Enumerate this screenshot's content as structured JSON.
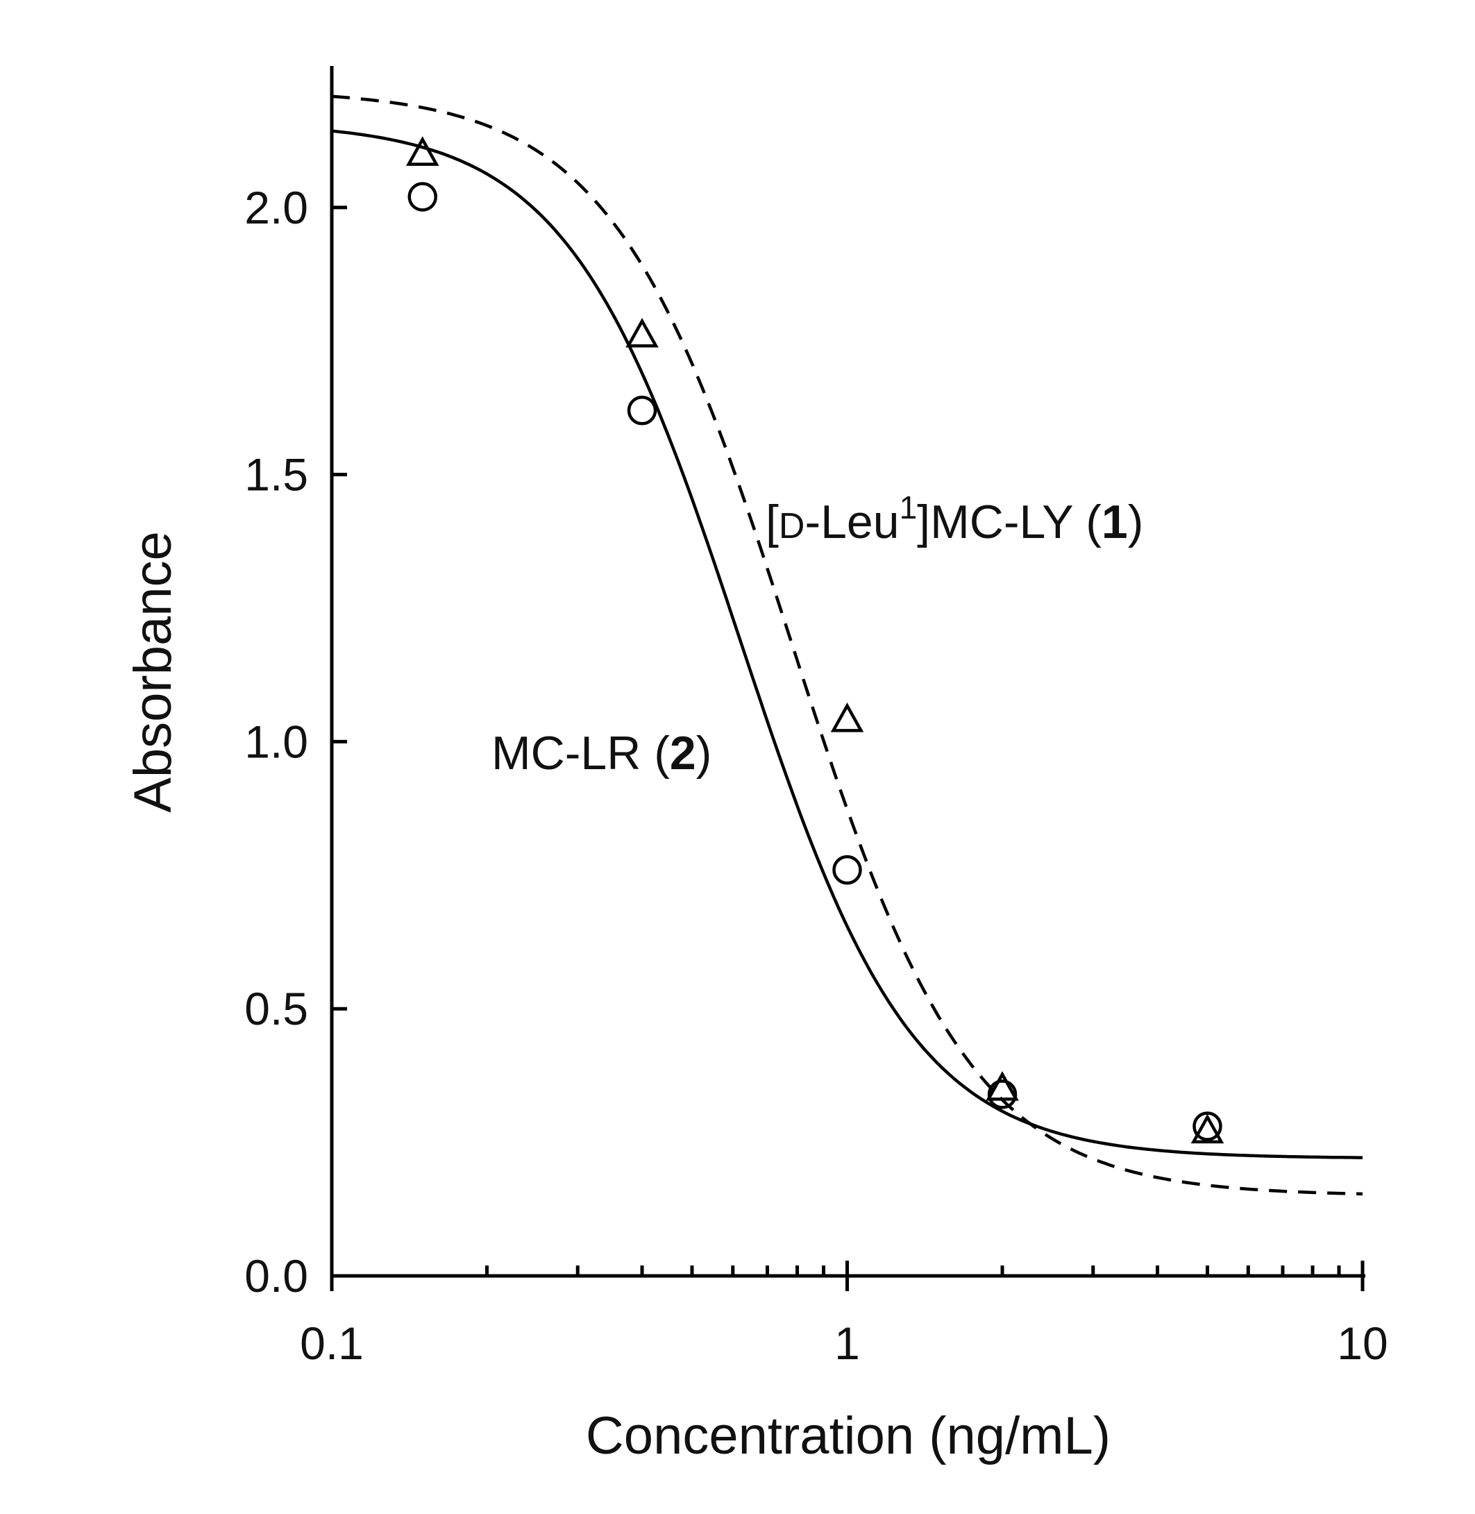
{
  "chart_data": {
    "type": "scatter",
    "xlabel": "Concentration (ng/mL)",
    "ylabel": "Absorbance",
    "xscale": "log",
    "xlim": [
      0.1,
      10
    ],
    "ylim": [
      0,
      2.3
    ],
    "x_ticks": [
      {
        "value": 0.1,
        "label": "0.1"
      },
      {
        "value": 1,
        "label": "1"
      },
      {
        "value": 10,
        "label": "10"
      }
    ],
    "y_ticks": [
      {
        "value": 0.0,
        "label": "0.0"
      },
      {
        "value": 0.5,
        "label": "0.5"
      },
      {
        "value": 1.0,
        "label": "1.0"
      },
      {
        "value": 1.5,
        "label": "1.5"
      },
      {
        "value": 2.0,
        "label": "2.0"
      }
    ],
    "grid": false,
    "series": [
      {
        "name": "MC-LR (2)",
        "label_parts": {
          "text": "MC-LR (",
          "bold": "2",
          "close": ")"
        },
        "marker": "circle",
        "line": "solid",
        "color": "#000000",
        "points": [
          {
            "x": 0.15,
            "y": 2.02
          },
          {
            "x": 0.4,
            "y": 1.62
          },
          {
            "x": 1.0,
            "y": 0.76
          },
          {
            "x": 2.0,
            "y": 0.34
          },
          {
            "x": 5.0,
            "y": 0.28
          }
        ],
        "fit": {
          "top": 2.16,
          "bottom": 0.22,
          "ec50": 0.62,
          "hill": 2.6
        }
      },
      {
        "name": "[D-Leu1]MC-LY (1)",
        "label_parts": {
          "pre": "[",
          "smallcap": "D",
          "mid": "-Leu",
          "sup": "1",
          "post": "]MC-LY (",
          "bold": "1",
          "close": ")"
        },
        "marker": "triangle",
        "line": "dashed",
        "color": "#000000",
        "points": [
          {
            "x": 0.15,
            "y": 2.1
          },
          {
            "x": 0.4,
            "y": 1.76
          },
          {
            "x": 1.0,
            "y": 1.04
          },
          {
            "x": 2.0,
            "y": 0.35
          },
          {
            "x": 5.0,
            "y": 0.27
          }
        ],
        "fit": {
          "top": 2.22,
          "bottom": 0.15,
          "ec50": 0.78,
          "hill": 2.5
        }
      }
    ]
  }
}
